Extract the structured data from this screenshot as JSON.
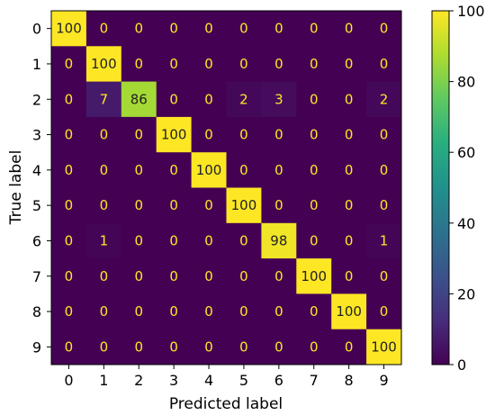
{
  "chart_data": {
    "type": "heatmap",
    "title": "",
    "xlabel": "Predicted label",
    "ylabel": "True label",
    "x_categories": [
      "0",
      "1",
      "2",
      "3",
      "4",
      "5",
      "6",
      "7",
      "8",
      "9"
    ],
    "y_categories": [
      "0",
      "1",
      "2",
      "3",
      "4",
      "5",
      "6",
      "7",
      "8",
      "9"
    ],
    "values": [
      [
        100,
        0,
        0,
        0,
        0,
        0,
        0,
        0,
        0,
        0
      ],
      [
        0,
        100,
        0,
        0,
        0,
        0,
        0,
        0,
        0,
        0
      ],
      [
        0,
        7,
        86,
        0,
        0,
        2,
        3,
        0,
        0,
        2
      ],
      [
        0,
        0,
        0,
        100,
        0,
        0,
        0,
        0,
        0,
        0
      ],
      [
        0,
        0,
        0,
        0,
        100,
        0,
        0,
        0,
        0,
        0
      ],
      [
        0,
        0,
        0,
        0,
        0,
        100,
        0,
        0,
        0,
        0
      ],
      [
        0,
        1,
        0,
        0,
        0,
        0,
        98,
        0,
        0,
        1
      ],
      [
        0,
        0,
        0,
        0,
        0,
        0,
        0,
        100,
        0,
        0
      ],
      [
        0,
        0,
        0,
        0,
        0,
        0,
        0,
        0,
        100,
        0
      ],
      [
        0,
        0,
        0,
        0,
        0,
        0,
        0,
        0,
        0,
        100
      ]
    ],
    "colormap": "viridis",
    "vmin": 0,
    "vmax": 100,
    "colorbar_ticks": [
      "0",
      "20",
      "40",
      "60",
      "80",
      "100"
    ],
    "grid": false
  }
}
